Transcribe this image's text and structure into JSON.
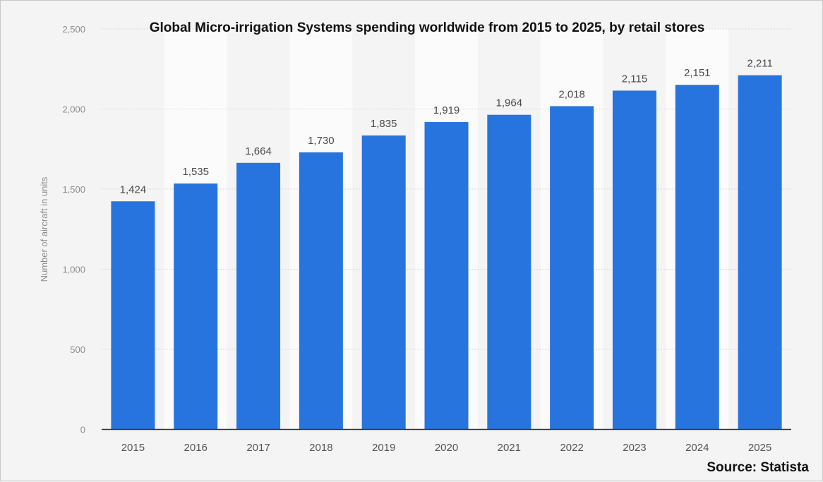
{
  "chart_data": {
    "type": "bar",
    "title": "Global Micro-irrigation Systems spending worldwide from 2015 to 2025, by retail stores",
    "xlabel": "",
    "ylabel": "Number of aircraft in units",
    "categories": [
      "2015",
      "2016",
      "2017",
      "2018",
      "2019",
      "2020",
      "2021",
      "2022",
      "2023",
      "2024",
      "2025"
    ],
    "values": [
      1424,
      1535,
      1664,
      1730,
      1835,
      1919,
      1964,
      2018,
      2115,
      2151,
      2211
    ],
    "data_labels": [
      "1,424",
      "1,535",
      "1,664",
      "1,730",
      "1,835",
      "1,919",
      "1,964",
      "2,018",
      "2,115",
      "2,151",
      "2,211"
    ],
    "y_ticks": [
      0,
      500,
      1000,
      1500,
      2000,
      2500
    ],
    "y_tick_labels": [
      "0",
      "500",
      "1,000",
      "1,500",
      "2,000",
      "2,500"
    ],
    "ylim": [
      0,
      2500
    ],
    "grid": "horizontal dashed",
    "legend": "none",
    "bar_color": "#2874df",
    "source": "Source: Statista"
  },
  "colors": {
    "background": "#f4f4f4",
    "alternate_band": "#fbfbfb",
    "bar": "#2874df",
    "grid": "#d7d7d7",
    "axis": "#2f2f2f"
  }
}
